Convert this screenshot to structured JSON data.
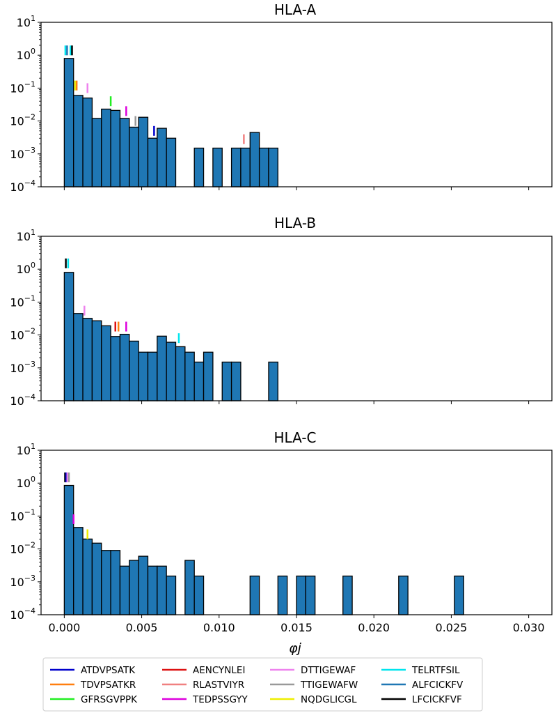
{
  "figure": {
    "xlabel": "φj",
    "xlim": [
      -0.0015,
      0.0315
    ],
    "ylim": [
      0.0001,
      10
    ],
    "x_ticks": [
      0.0,
      0.005,
      0.01,
      0.015,
      0.02,
      0.025,
      0.03
    ],
    "x_tick_labels": [
      "0.000",
      "0.005",
      "0.010",
      "0.015",
      "0.020",
      "0.025",
      "0.030"
    ],
    "y_ticks": [
      0.0001,
      0.001,
      0.01,
      0.1,
      1,
      10
    ],
    "y_tick_labels": [
      {
        "base": "10",
        "exp": "−4"
      },
      {
        "base": "10",
        "exp": "−3"
      },
      {
        "base": "10",
        "exp": "−2"
      },
      {
        "base": "10",
        "exp": "−1"
      },
      {
        "base": "10",
        "exp": "0"
      },
      {
        "base": "10",
        "exp": "1"
      }
    ]
  },
  "legend": {
    "entries": [
      {
        "label": "ATDVPSATK",
        "color": "#0000cc"
      },
      {
        "label": "TDVPSATKR",
        "color": "#ff7f0e"
      },
      {
        "label": "GFRSGVPPK",
        "color": "#22ee22"
      },
      {
        "label": "AENCYNLEI",
        "color": "#dd1111"
      },
      {
        "label": "RLASTVIYR",
        "color": "#f08080"
      },
      {
        "label": "TEDPSSGYY",
        "color": "#dd00dd"
      },
      {
        "label": "DTTIGEWAF",
        "color": "#ee82ee"
      },
      {
        "label": "TTIGEWAFW",
        "color": "#999999"
      },
      {
        "label": "NQDGLICGL",
        "color": "#eeee00"
      },
      {
        "label": "TELRTFSIL",
        "color": "#00e5ee"
      },
      {
        "label": "ALFCICKFV",
        "color": "#1f77b4"
      },
      {
        "label": "LFCICKFVF",
        "color": "#000000"
      }
    ]
  },
  "chart_data": [
    {
      "type": "bar",
      "title": "HLA-A",
      "bin_width": 0.0006,
      "bin_starts": [
        0.0,
        0.0006,
        0.0012,
        0.0018,
        0.0024,
        0.003,
        0.0036,
        0.0042,
        0.0048,
        0.0054,
        0.006,
        0.0066,
        0.0084,
        0.0096,
        0.0108,
        0.0114,
        0.012,
        0.0126,
        0.0132
      ],
      "values": [
        0.8,
        0.06,
        0.05,
        0.012,
        0.023,
        0.021,
        0.012,
        0.0065,
        0.013,
        0.003,
        0.006,
        0.003,
        0.0015,
        0.0015,
        0.0015,
        0.0015,
        0.0045,
        0.0015,
        0.0015
      ],
      "color": "#1f77b4",
      "markers": [
        {
          "x": 7e-05,
          "y": 1.4,
          "color": "#00e5ee"
        },
        {
          "x": 0.00018,
          "y": 1.4,
          "color": "#1f77b4"
        },
        {
          "x": 0.0004,
          "y": 1.4,
          "color": "#00e5ee"
        },
        {
          "x": 0.0005,
          "y": 1.4,
          "color": "#000000"
        },
        {
          "x": 0.0007,
          "y": 0.12,
          "color": "#eeee00"
        },
        {
          "x": 0.0008,
          "y": 0.12,
          "color": "#ff7f0e"
        },
        {
          "x": 0.0015,
          "y": 0.1,
          "color": "#ee82ee"
        },
        {
          "x": 0.003,
          "y": 0.04,
          "color": "#22ee22"
        },
        {
          "x": 0.004,
          "y": 0.02,
          "color": "#dd00dd"
        },
        {
          "x": 0.0046,
          "y": 0.01,
          "color": "#999999"
        },
        {
          "x": 0.0058,
          "y": 0.005,
          "color": "#0000cc"
        },
        {
          "x": 0.0116,
          "y": 0.0028,
          "color": "#f08080"
        }
      ]
    },
    {
      "type": "bar",
      "title": "HLA-B",
      "bin_width": 0.0006,
      "bin_starts": [
        0.0,
        0.0006,
        0.0012,
        0.0018,
        0.0024,
        0.003,
        0.0036,
        0.0042,
        0.0048,
        0.0054,
        0.006,
        0.0066,
        0.0072,
        0.0078,
        0.0084,
        0.009,
        0.0102,
        0.0108,
        0.0132
      ],
      "values": [
        0.8,
        0.045,
        0.032,
        0.027,
        0.019,
        0.009,
        0.0105,
        0.0065,
        0.003,
        0.003,
        0.0092,
        0.006,
        0.0044,
        0.003,
        0.0015,
        0.003,
        0.0015,
        0.0015,
        0.0015
      ],
      "color": "#1f77b4",
      "markers": [
        {
          "x": 0.0001,
          "y": 1.5,
          "color": "#000000"
        },
        {
          "x": 0.00025,
          "y": 1.5,
          "color": "#00e5ee"
        },
        {
          "x": 0.0013,
          "y": 0.055,
          "color": "#ee82ee"
        },
        {
          "x": 0.0033,
          "y": 0.018,
          "color": "#dd1111"
        },
        {
          "x": 0.0035,
          "y": 0.018,
          "color": "#ff7f0e"
        },
        {
          "x": 0.004,
          "y": 0.018,
          "color": "#dd00dd"
        },
        {
          "x": 0.0074,
          "y": 0.008,
          "color": "#00e5ee"
        }
      ]
    },
    {
      "type": "bar",
      "title": "HLA-C",
      "bin_width": 0.0006,
      "bin_starts": [
        0.0,
        0.0006,
        0.0012,
        0.0018,
        0.0024,
        0.003,
        0.0036,
        0.0042,
        0.0048,
        0.0054,
        0.006,
        0.0066,
        0.0078,
        0.0084,
        0.012,
        0.0138,
        0.015,
        0.0156,
        0.018,
        0.0216,
        0.0252
      ],
      "values": [
        0.85,
        0.045,
        0.02,
        0.015,
        0.009,
        0.009,
        0.003,
        0.0045,
        0.006,
        0.003,
        0.003,
        0.0015,
        0.0045,
        0.0015,
        0.0015,
        0.0015,
        0.0015,
        0.0015,
        0.0015,
        0.0015,
        0.0015
      ],
      "color": "#1f77b4",
      "markers": [
        {
          "x": 5e-05,
          "y": 1.5,
          "color": "#000000"
        },
        {
          "x": 0.00012,
          "y": 1.5,
          "color": "#0000cc"
        },
        {
          "x": 0.0002,
          "y": 1.5,
          "color": "#ee82ee"
        },
        {
          "x": 0.0003,
          "y": 1.5,
          "color": "#999999"
        },
        {
          "x": 0.0006,
          "y": 0.08,
          "color": "#dd00dd"
        },
        {
          "x": 0.0015,
          "y": 0.028,
          "color": "#eeee00"
        }
      ]
    }
  ]
}
